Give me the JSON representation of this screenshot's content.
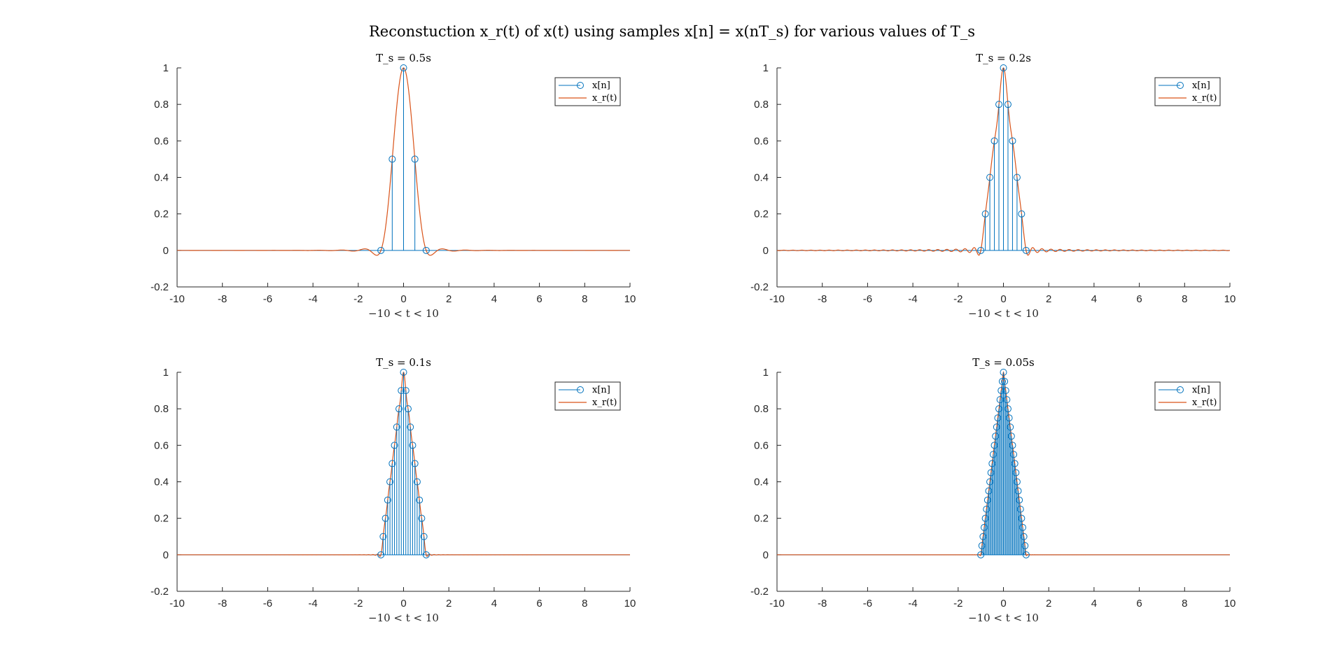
{
  "figure": {
    "title": "Reconstuction x_r(t) of x(t) using samples x[n] = x(nT_s) for various values of T_s"
  },
  "chart_data": [
    {
      "type": "stem+line",
      "title": "T_s = 0.5s",
      "xlabel": "−10 < t < 10",
      "ylabel": "",
      "xlim": [
        -10,
        10
      ],
      "ylim": [
        -0.2,
        1
      ],
      "xticks": [
        "-10",
        "-8",
        "-6",
        "-4",
        "-2",
        "0",
        "2",
        "4",
        "6",
        "8",
        "10"
      ],
      "yticks": [
        "-0.2",
        "0",
        "0.2",
        "0.4",
        "0.6",
        "0.8",
        "1"
      ],
      "Ts": 0.5,
      "signal": "triangle pulse x(t) = 1 - |t| for |t| <= 1, sampled at t = nT_s",
      "samples": {
        "name": "x[n]",
        "t": [
          -1,
          -0.5,
          0,
          0.5,
          1
        ],
        "values": [
          0,
          0.5,
          1,
          0.5,
          0
        ]
      },
      "reconstruction": {
        "name": "x_r(t)",
        "method": "sinc interpolation"
      },
      "legend": {
        "position": "top-right",
        "entries": [
          "x[n]",
          "x_r(t)"
        ]
      }
    },
    {
      "type": "stem+line",
      "title": "T_s = 0.2s",
      "xlabel": "−10 < t < 10",
      "ylabel": "",
      "xlim": [
        -10,
        10
      ],
      "ylim": [
        -0.2,
        1
      ],
      "xticks": [
        "-10",
        "-8",
        "-6",
        "-4",
        "-2",
        "0",
        "2",
        "4",
        "6",
        "8",
        "10"
      ],
      "yticks": [
        "-0.2",
        "0",
        "0.2",
        "0.4",
        "0.6",
        "0.8",
        "1"
      ],
      "Ts": 0.2,
      "signal": "triangle pulse x(t) = 1 - |t| for |t| <= 1, sampled at t = nT_s",
      "samples": {
        "name": "x[n]",
        "t": [
          -1,
          -0.8,
          -0.6,
          -0.4,
          -0.2,
          0,
          0.2,
          0.4,
          0.6,
          0.8,
          1
        ],
        "values": [
          0,
          0.2,
          0.4,
          0.6,
          0.8,
          1,
          0.8,
          0.6,
          0.4,
          0.2,
          0
        ]
      },
      "reconstruction": {
        "name": "x_r(t)",
        "method": "sinc interpolation"
      },
      "legend": {
        "position": "top-right",
        "entries": [
          "x[n]",
          "x_r(t)"
        ]
      }
    },
    {
      "type": "stem+line",
      "title": "T_s = 0.1s",
      "xlabel": "−10 < t < 10",
      "ylabel": "",
      "xlim": [
        -10,
        10
      ],
      "ylim": [
        -0.2,
        1
      ],
      "xticks": [
        "-10",
        "-8",
        "-6",
        "-4",
        "-2",
        "0",
        "2",
        "4",
        "6",
        "8",
        "10"
      ],
      "yticks": [
        "-0.2",
        "0",
        "0.2",
        "0.4",
        "0.6",
        "0.8",
        "1"
      ],
      "Ts": 0.1,
      "signal": "triangle pulse x(t) = 1 - |t| for |t| <= 1, sampled at t = nT_s",
      "samples": {
        "name": "x[n]",
        "t": [
          -1,
          -0.9,
          -0.8,
          -0.7,
          -0.6,
          -0.5,
          -0.4,
          -0.3,
          -0.2,
          -0.1,
          0,
          0.1,
          0.2,
          0.3,
          0.4,
          0.5,
          0.6,
          0.7,
          0.8,
          0.9,
          1
        ],
        "values": [
          0,
          0.1,
          0.2,
          0.3,
          0.4,
          0.5,
          0.6,
          0.7,
          0.8,
          0.9,
          1,
          0.9,
          0.8,
          0.7,
          0.6,
          0.5,
          0.4,
          0.3,
          0.2,
          0.1,
          0
        ]
      },
      "reconstruction": {
        "name": "x_r(t)",
        "method": "sinc interpolation"
      },
      "legend": {
        "position": "top-right",
        "entries": [
          "x[n]",
          "x_r(t)"
        ]
      }
    },
    {
      "type": "stem+line",
      "title": "T_s = 0.05s",
      "xlabel": "−10 < t < 10",
      "ylabel": "",
      "xlim": [
        -10,
        10
      ],
      "ylim": [
        -0.2,
        1
      ],
      "xticks": [
        "-10",
        "-8",
        "-6",
        "-4",
        "-2",
        "0",
        "2",
        "4",
        "6",
        "8",
        "10"
      ],
      "yticks": [
        "-0.2",
        "0",
        "0.2",
        "0.4",
        "0.6",
        "0.8",
        "1"
      ],
      "Ts": 0.05,
      "signal": "triangle pulse x(t) = 1 - |t| for |t| <= 1, sampled at t = nT_s",
      "samples": {
        "name": "x[n]",
        "t": [
          -1,
          -0.95,
          -0.9,
          -0.85,
          -0.8,
          -0.75,
          -0.7,
          -0.65,
          -0.6,
          -0.55,
          -0.5,
          -0.45,
          -0.4,
          -0.35,
          -0.3,
          -0.25,
          -0.2,
          -0.15,
          -0.1,
          -0.05,
          0,
          0.05,
          0.1,
          0.15,
          0.2,
          0.25,
          0.3,
          0.35,
          0.4,
          0.45,
          0.5,
          0.55,
          0.6,
          0.65,
          0.7,
          0.75,
          0.8,
          0.85,
          0.9,
          0.95,
          1
        ],
        "values": [
          0,
          0.05,
          0.1,
          0.15,
          0.2,
          0.25,
          0.3,
          0.35,
          0.4,
          0.45,
          0.5,
          0.55,
          0.6,
          0.65,
          0.7,
          0.75,
          0.8,
          0.85,
          0.9,
          0.95,
          1,
          0.95,
          0.9,
          0.85,
          0.8,
          0.75,
          0.7,
          0.65,
          0.6,
          0.55,
          0.5,
          0.45,
          0.4,
          0.35,
          0.3,
          0.25,
          0.2,
          0.15,
          0.1,
          0.05,
          0
        ]
      },
      "reconstruction": {
        "name": "x_r(t)",
        "method": "sinc interpolation"
      },
      "legend": {
        "position": "top-right",
        "entries": [
          "x[n]",
          "x_r(t)"
        ]
      }
    }
  ],
  "colors": {
    "samples": "#0072BD",
    "reconstruction": "#D95319",
    "axis": "#262626"
  }
}
